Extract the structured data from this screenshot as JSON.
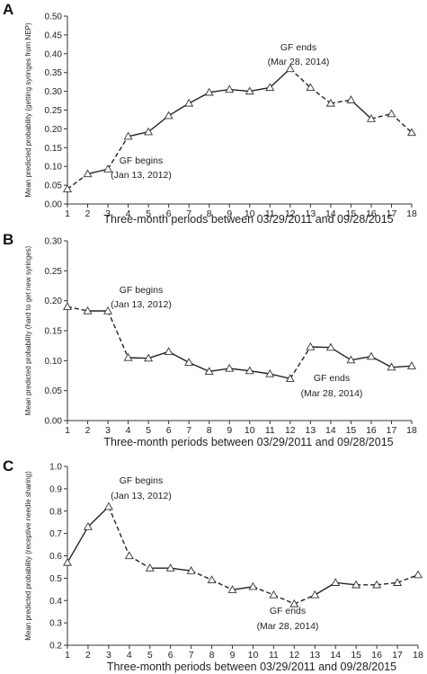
{
  "chart_data": [
    {
      "panel": "A",
      "type": "line",
      "xlabel": "Three-month periods between 03/29/2011 and 09/28/2015",
      "ylabel": "Mean predicted probability (getting syringes from NEP)",
      "x": [
        1,
        2,
        3,
        4,
        5,
        6,
        7,
        8,
        9,
        10,
        11,
        12,
        13,
        14,
        15,
        16,
        17,
        18
      ],
      "ylim": [
        0.0,
        0.5
      ],
      "yticks": [
        "0.00",
        "0.05",
        "0.10",
        "0.15",
        "0.20",
        "0.25",
        "0.30",
        "0.35",
        "0.40",
        "0.45",
        "0.50"
      ],
      "values": [
        0.04,
        0.08,
        0.093,
        0.18,
        0.192,
        0.235,
        0.268,
        0.297,
        0.305,
        0.3,
        0.31,
        0.36,
        0.31,
        0.268,
        0.277,
        0.227,
        0.24,
        0.19
      ],
      "dashed_segments": [
        1,
        3,
        12,
        13,
        14,
        16,
        17
      ],
      "annotations": [
        {
          "line1": "GF begins",
          "line2": "(Jan 13, 2012)",
          "x": 3
        },
        {
          "line1": "GF ends",
          "line2": "(Mar 28, 2014)",
          "x": 12
        }
      ]
    },
    {
      "panel": "B",
      "type": "line",
      "xlabel": "Three-month periods between 03/29/2011 and 09/28/2015",
      "ylabel": "Mean predicted probability (hard to get new syringes)",
      "x": [
        1,
        2,
        3,
        4,
        5,
        6,
        7,
        8,
        9,
        10,
        11,
        12,
        13,
        14,
        15,
        16,
        17,
        18
      ],
      "ylim": [
        0.0,
        0.3
      ],
      "yticks": [
        "0.00",
        "0.05",
        "0.10",
        "0.15",
        "0.20",
        "0.25",
        "0.30"
      ],
      "values": [
        0.19,
        0.183,
        0.183,
        0.105,
        0.104,
        0.115,
        0.097,
        0.082,
        0.087,
        0.083,
        0.078,
        0.07,
        0.123,
        0.122,
        0.101,
        0.107,
        0.089,
        0.091
      ],
      "dashed_segments": [
        1,
        3,
        12
      ],
      "annotations": [
        {
          "line1": "GF begins",
          "line2": "(Jan 13, 2012)",
          "x": 3
        },
        {
          "line1": "GF ends",
          "line2": "(Mar 28, 2014)",
          "x": 12
        }
      ]
    },
    {
      "panel": "C",
      "type": "line",
      "xlabel": "Three-month periods between 03/29/2011 and 09/28/2015",
      "ylabel": "Mean predicted probability (receptive needle sharing)",
      "x": [
        1,
        2,
        3,
        4,
        5,
        6,
        7,
        8,
        9,
        10,
        11,
        12,
        13,
        14,
        15,
        16,
        17,
        18
      ],
      "ylim": [
        0.2,
        1.0
      ],
      "yticks": [
        "0.2",
        "0.3",
        "0.4",
        "0.5",
        "0.6",
        "0.7",
        "0.8",
        "0.9",
        "1.0"
      ],
      "values": [
        0.57,
        0.73,
        0.82,
        0.6,
        0.545,
        0.545,
        0.533,
        0.492,
        0.448,
        0.462,
        0.425,
        0.385,
        0.425,
        0.48,
        0.47,
        0.47,
        0.48,
        0.515
      ],
      "dashed_segments": [
        3,
        4,
        7,
        8,
        10,
        11,
        12,
        15,
        16,
        17
      ],
      "annotations": [
        {
          "line1": "GF begins",
          "line2": "(Jan 13, 2012)",
          "x": 3
        },
        {
          "line1": "GF ends",
          "line2": "(Mar 28, 2014)",
          "x": 12
        }
      ]
    }
  ]
}
